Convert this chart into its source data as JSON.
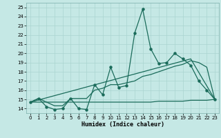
{
  "xlabel": "Humidex (Indice chaleur)",
  "xlim": [
    -0.5,
    23.5
  ],
  "ylim": [
    13.5,
    25.5
  ],
  "yticks": [
    14,
    15,
    16,
    17,
    18,
    19,
    20,
    21,
    22,
    23,
    24,
    25
  ],
  "xticks": [
    0,
    1,
    2,
    3,
    4,
    5,
    6,
    7,
    8,
    9,
    10,
    11,
    12,
    13,
    14,
    15,
    16,
    17,
    18,
    19,
    20,
    21,
    22,
    23
  ],
  "bg_color": "#c5e8e5",
  "grid_color": "#aad4d0",
  "line_color": "#1a6b5a",
  "line1_x": [
    0,
    1,
    2,
    3,
    4,
    5,
    6,
    7,
    8,
    9,
    10,
    11,
    12,
    13,
    14,
    15,
    16,
    17,
    18,
    19,
    20,
    21,
    22,
    23
  ],
  "line1_y": [
    14.7,
    15.1,
    14.2,
    13.9,
    14.0,
    15.1,
    14.0,
    13.9,
    16.6,
    15.5,
    18.5,
    16.3,
    16.5,
    22.2,
    24.8,
    20.5,
    18.9,
    19.0,
    20.0,
    19.4,
    18.7,
    17.0,
    16.0,
    15.0
  ],
  "line2_x": [
    0,
    1,
    2,
    3,
    4,
    5,
    6,
    7,
    8,
    9,
    10,
    11,
    12,
    13,
    14,
    15,
    16,
    17,
    18,
    19,
    20,
    21,
    22,
    23
  ],
  "line2_y": [
    14.7,
    15.1,
    14.7,
    14.3,
    14.3,
    15.1,
    15.1,
    15.1,
    16.0,
    16.2,
    16.6,
    16.6,
    16.8,
    17.0,
    17.5,
    17.7,
    18.0,
    18.3,
    18.6,
    18.8,
    19.2,
    19.0,
    18.5,
    15.0
  ],
  "line3_x": [
    0,
    1,
    2,
    3,
    4,
    5,
    6,
    7,
    8,
    9,
    10,
    11,
    12,
    13,
    14,
    15,
    16,
    17,
    18,
    19,
    20,
    21,
    22,
    23
  ],
  "line3_y": [
    14.7,
    14.7,
    14.7,
    14.7,
    14.7,
    14.7,
    14.7,
    14.7,
    14.7,
    14.7,
    14.7,
    14.7,
    14.7,
    14.7,
    14.7,
    14.7,
    14.8,
    14.8,
    14.8,
    14.8,
    14.9,
    14.9,
    14.9,
    15.0
  ],
  "line4_x": [
    0,
    20,
    23
  ],
  "line4_y": [
    14.7,
    19.4,
    15.0
  ]
}
